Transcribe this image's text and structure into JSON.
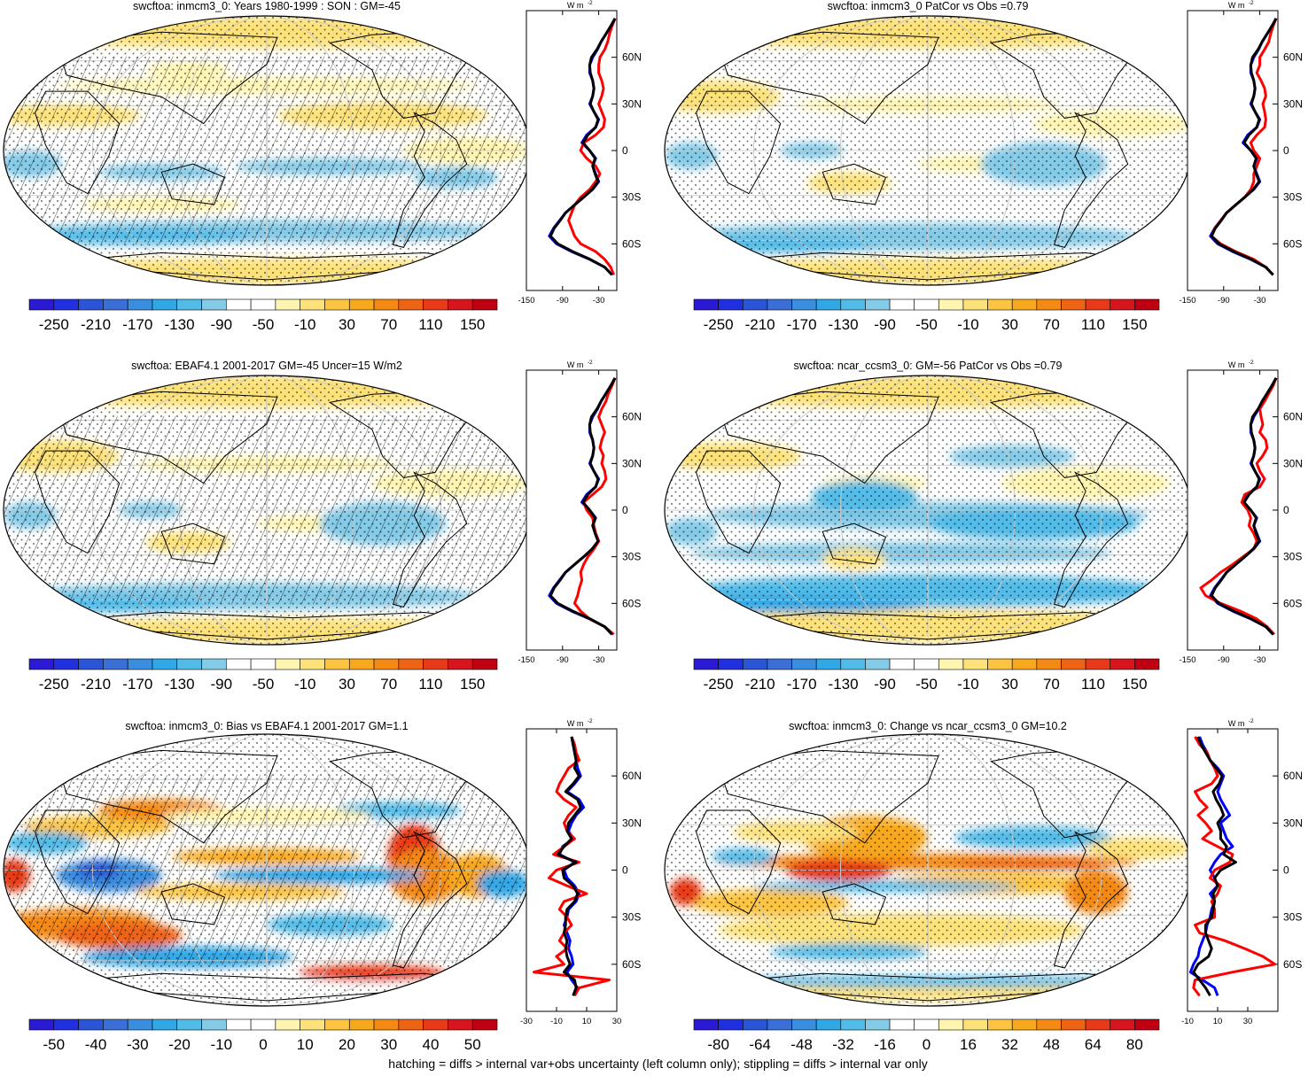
{
  "figure": {
    "footer": "hatching = diffs > internal var+obs uncertainty (left column only); stippling = diffs > internal var only",
    "zonal_unit": "W m",
    "zonal_unit_exp": "-2",
    "lat_ticks": [
      "60N",
      "30N",
      "0",
      "30S",
      "60S"
    ]
  },
  "colors": {
    "colormap": [
      "#2a1ad6",
      "#2030e0",
      "#2a55d6",
      "#3a6fd8",
      "#3a8ee0",
      "#30a8e6",
      "#52bce8",
      "#84cbe8",
      "#ffffff",
      "#ffffff",
      "#fff4b0",
      "#fde27a",
      "#fcc440",
      "#f8a81c",
      "#f48a14",
      "#ef6414",
      "#e83a18",
      "#d8141c",
      "#c00012"
    ],
    "obs_line": "#0000ff",
    "model_line": "#ff0000",
    "ref_line": "#000000"
  },
  "chart_data": [
    {
      "type": "heatmap",
      "id": "p1",
      "title": "swcftoa: inmcm3_0: Years 1980-1999 : SON : GM=-45",
      "colorbar_ticks": [
        "-250",
        "-210",
        "-170",
        "-130",
        "-90",
        "-50",
        "-10",
        "30",
        "70",
        "110",
        "150"
      ],
      "zonal": {
        "xlim": [
          -150,
          0
        ],
        "xticks": [
          "-150",
          "-90",
          "-30"
        ],
        "lat": [
          85,
          80,
          75,
          70,
          65,
          60,
          55,
          50,
          45,
          40,
          35,
          30,
          25,
          20,
          15,
          10,
          5,
          0,
          -5,
          -10,
          -15,
          -20,
          -25,
          -30,
          -35,
          -40,
          -45,
          -50,
          -55,
          -60,
          -65,
          -70,
          -75,
          -80
        ],
        "series": [
          {
            "name": "obs",
            "values": [
              -3,
              -10,
              -18,
              -26,
              -32,
              -40,
              -45,
              -45,
              -40,
              -38,
              -40,
              -45,
              -38,
              -30,
              -35,
              -50,
              -58,
              -45,
              -35,
              -40,
              -35,
              -30,
              -40,
              -55,
              -70,
              -85,
              -95,
              -105,
              -112,
              -100,
              -75,
              -45,
              -20,
              -8
            ]
          },
          {
            "name": "model",
            "values": [
              -3,
              -8,
              -12,
              -15,
              -20,
              -28,
              -30,
              -30,
              -25,
              -22,
              -25,
              -30,
              -25,
              -20,
              -22,
              -35,
              -55,
              -60,
              -50,
              -35,
              -28,
              -35,
              -45,
              -60,
              -70,
              -75,
              -80,
              -75,
              -70,
              -60,
              -35,
              -20,
              -10,
              -5
            ]
          },
          {
            "name": "ref",
            "values": [
              -3,
              -10,
              -18,
              -26,
              -33,
              -42,
              -45,
              -44,
              -40,
              -38,
              -40,
              -44,
              -38,
              -31,
              -35,
              -48,
              -56,
              -45,
              -36,
              -40,
              -36,
              -31,
              -41,
              -55,
              -70,
              -85,
              -94,
              -104,
              -110,
              -98,
              -73,
              -44,
              -20,
              -8
            ]
          }
        ]
      }
    },
    {
      "type": "heatmap",
      "id": "p2",
      "title": "swcftoa: inmcm3_0 PatCor vs Obs =0.79",
      "colorbar_ticks": [
        "-250",
        "-210",
        "-170",
        "-130",
        "-90",
        "-50",
        "-10",
        "30",
        "70",
        "110",
        "150"
      ],
      "zonal": {
        "xlim": [
          -150,
          0
        ],
        "xticks": [
          "-150",
          "-90",
          "-30"
        ],
        "lat": [
          85,
          80,
          75,
          70,
          65,
          60,
          55,
          50,
          45,
          40,
          35,
          30,
          25,
          20,
          15,
          10,
          5,
          0,
          -5,
          -10,
          -15,
          -20,
          -25,
          -30,
          -35,
          -40,
          -45,
          -50,
          -55,
          -60,
          -65,
          -70,
          -75,
          -80
        ],
        "series": [
          {
            "name": "obs",
            "values": [
              -3,
              -10,
              -18,
              -26,
              -32,
              -40,
              -45,
              -45,
              -40,
              -38,
              -40,
              -45,
              -38,
              -30,
              -35,
              -50,
              -58,
              -45,
              -35,
              -40,
              -35,
              -30,
              -40,
              -55,
              -70,
              -85,
              -95,
              -105,
              -112,
              -100,
              -75,
              -45,
              -20,
              -8
            ]
          },
          {
            "name": "model",
            "values": [
              -3,
              -8,
              -12,
              -15,
              -22,
              -30,
              -30,
              -35,
              -28,
              -22,
              -20,
              -25,
              -22,
              -20,
              -22,
              -35,
              -45,
              -40,
              -30,
              -35,
              -40,
              -40,
              -45,
              -55,
              -70,
              -85,
              -95,
              -105,
              -110,
              -95,
              -70,
              -40,
              -20,
              -8
            ]
          },
          {
            "name": "ref",
            "values": [
              -3,
              -10,
              -18,
              -26,
              -33,
              -42,
              -45,
              -44,
              -40,
              -38,
              -40,
              -44,
              -38,
              -31,
              -35,
              -48,
              -56,
              -45,
              -36,
              -40,
              -36,
              -31,
              -41,
              -55,
              -70,
              -85,
              -94,
              -104,
              -110,
              -98,
              -73,
              -44,
              -20,
              -8
            ]
          }
        ]
      }
    },
    {
      "type": "heatmap",
      "id": "p3",
      "title": "swcftoa: EBAF4.1 2001-2017 GM=-45 Uncer=15 W/m2",
      "colorbar_ticks": [
        "-250",
        "-210",
        "-170",
        "-130",
        "-90",
        "-50",
        "-10",
        "30",
        "70",
        "110",
        "150"
      ],
      "zonal": {
        "xlim": [
          -150,
          0
        ],
        "xticks": [
          "-150",
          "-90",
          "-30"
        ],
        "lat": [
          85,
          80,
          75,
          70,
          65,
          60,
          55,
          50,
          45,
          40,
          35,
          30,
          25,
          20,
          15,
          10,
          5,
          0,
          -5,
          -10,
          -15,
          -20,
          -25,
          -30,
          -35,
          -40,
          -45,
          -50,
          -55,
          -60,
          -65,
          -70,
          -75,
          -80
        ],
        "series": [
          {
            "name": "obs",
            "values": [
              -3,
              -10,
              -18,
              -26,
              -32,
              -40,
              -45,
              -45,
              -40,
              -38,
              -40,
              -45,
              -38,
              -30,
              -35,
              -50,
              -58,
              -45,
              -35,
              -40,
              -35,
              -30,
              -40,
              -55,
              -70,
              -85,
              -95,
              -105,
              -112,
              -100,
              -75,
              -45,
              -20,
              -8
            ]
          },
          {
            "name": "model",
            "values": [
              -3,
              -8,
              -14,
              -18,
              -25,
              -30,
              -25,
              -20,
              -25,
              -28,
              -22,
              -25,
              -20,
              -18,
              -25,
              -40,
              -55,
              -50,
              -40,
              -38,
              -35,
              -30,
              -38,
              -48,
              -55,
              -60,
              -58,
              -62,
              -65,
              -70,
              -60,
              -45,
              -20,
              -5
            ]
          },
          {
            "name": "ref",
            "values": [
              -3,
              -10,
              -18,
              -26,
              -33,
              -42,
              -45,
              -44,
              -40,
              -38,
              -40,
              -44,
              -38,
              -31,
              -35,
              -48,
              -56,
              -45,
              -36,
              -40,
              -36,
              -31,
              -41,
              -55,
              -70,
              -85,
              -94,
              -104,
              -110,
              -98,
              -73,
              -44,
              -20,
              -8
            ]
          }
        ]
      }
    },
    {
      "type": "heatmap",
      "id": "p4",
      "title": "swcftoa: ncar_ccsm3_0: GM=-56 PatCor vs Obs =0.79",
      "colorbar_ticks": [
        "-250",
        "-210",
        "-170",
        "-130",
        "-90",
        "-50",
        "-10",
        "30",
        "70",
        "110",
        "150"
      ],
      "zonal": {
        "xlim": [
          -150,
          0
        ],
        "xticks": [
          "-150",
          "-90",
          "-30"
        ],
        "lat": [
          85,
          80,
          75,
          70,
          65,
          60,
          55,
          50,
          45,
          40,
          35,
          30,
          25,
          20,
          15,
          10,
          5,
          0,
          -5,
          -10,
          -15,
          -20,
          -25,
          -30,
          -35,
          -40,
          -45,
          -50,
          -55,
          -60,
          -65,
          -70,
          -75,
          -80
        ],
        "series": [
          {
            "name": "obs",
            "values": [
              -3,
              -10,
              -18,
              -26,
              -32,
              -40,
              -45,
              -45,
              -40,
              -38,
              -40,
              -45,
              -38,
              -30,
              -35,
              -50,
              -58,
              -45,
              -35,
              -40,
              -35,
              -30,
              -40,
              -55,
              -70,
              -85,
              -95,
              -105,
              -112,
              -100,
              -75,
              -45,
              -20,
              -8
            ]
          },
          {
            "name": "model",
            "values": [
              -3,
              -8,
              -15,
              -22,
              -30,
              -28,
              -25,
              -30,
              -20,
              -18,
              -25,
              -35,
              -30,
              -22,
              -30,
              -55,
              -60,
              -50,
              -45,
              -48,
              -40,
              -35,
              -40,
              -58,
              -75,
              -95,
              -110,
              -128,
              -120,
              -95,
              -62,
              -35,
              -18,
              -6
            ]
          },
          {
            "name": "ref",
            "values": [
              -3,
              -10,
              -18,
              -26,
              -33,
              -42,
              -45,
              -44,
              -40,
              -38,
              -40,
              -44,
              -38,
              -31,
              -35,
              -48,
              -56,
              -45,
              -36,
              -40,
              -36,
              -31,
              -41,
              -55,
              -70,
              -85,
              -94,
              -104,
              -110,
              -98,
              -73,
              -44,
              -20,
              -8
            ]
          }
        ]
      }
    },
    {
      "type": "heatmap",
      "id": "p5",
      "title": "swcftoa: inmcm3_0: Bias vs EBAF4.1 2001-2017  GM=1.1",
      "colorbar_ticks": [
        "-50",
        "-40",
        "-30",
        "-20",
        "-10",
        "0",
        "10",
        "20",
        "30",
        "40",
        "50"
      ],
      "zonal": {
        "xlim": [
          -30,
          30
        ],
        "xticks": [
          "-30",
          "-10",
          "10",
          "30"
        ],
        "lat": [
          85,
          80,
          75,
          70,
          65,
          60,
          55,
          50,
          45,
          40,
          35,
          30,
          25,
          20,
          15,
          10,
          5,
          0,
          -5,
          -10,
          -15,
          -20,
          -25,
          -30,
          -35,
          -40,
          -45,
          -50,
          -55,
          -60,
          -65,
          -70,
          -75,
          -80
        ],
        "series": [
          {
            "name": "obs",
            "values": [
              0,
              1,
              2,
              3,
              4,
              6,
              2,
              -3,
              5,
              8,
              3,
              0,
              -2,
              1,
              -6,
              -8,
              2,
              -5,
              -3,
              2,
              5,
              3,
              -2,
              -3,
              -5,
              -3,
              -1,
              -2,
              0,
              1,
              -3,
              0,
              4,
              2
            ]
          },
          {
            "name": "model",
            "values": [
              0,
              2,
              3,
              5,
              -2,
              -5,
              -8,
              -10,
              -5,
              3,
              -2,
              -5,
              -3,
              2,
              -5,
              -12,
              5,
              -10,
              -15,
              -3,
              10,
              -5,
              -8,
              -3,
              0,
              -5,
              -8,
              -3,
              -10,
              -5,
              -25,
              25,
              5,
              2
            ]
          },
          {
            "name": "ref",
            "values": [
              0,
              1,
              2,
              3,
              2,
              5,
              1,
              -4,
              4,
              6,
              2,
              -2,
              -3,
              0,
              -5,
              -9,
              3,
              -6,
              -5,
              1,
              4,
              2,
              -3,
              -4,
              -4,
              -5,
              -3,
              -4,
              -3,
              -1,
              -5,
              2,
              3,
              1
            ]
          }
        ]
      }
    },
    {
      "type": "heatmap",
      "id": "p6",
      "title": "swcftoa: inmcm3_0: Change vs ncar_ccsm3_0 GM=10.2",
      "colorbar_ticks": [
        "-80",
        "-64",
        "-48",
        "-32",
        "-16",
        "0",
        "16",
        "32",
        "48",
        "64",
        "80"
      ],
      "zonal": {
        "xlim": [
          -10,
          50
        ],
        "xticks": [
          "-10",
          "10",
          "30"
        ],
        "lat": [
          85,
          80,
          75,
          70,
          65,
          60,
          55,
          50,
          45,
          40,
          35,
          30,
          25,
          20,
          15,
          10,
          5,
          0,
          -5,
          -10,
          -15,
          -20,
          -25,
          -30,
          -35,
          -40,
          -45,
          -50,
          -55,
          -60,
          -65,
          -70,
          -75,
          -80
        ],
        "series": [
          {
            "name": "obs",
            "values": [
              -2,
              0,
              3,
              5,
              10,
              14,
              12,
              10,
              12,
              15,
              18,
              12,
              14,
              16,
              20,
              12,
              8,
              5,
              8,
              10,
              5,
              8,
              6,
              5,
              3,
              2,
              0,
              -2,
              -3,
              -6,
              -8,
              0,
              8,
              10
            ]
          },
          {
            "name": "model",
            "values": [
              -5,
              -2,
              3,
              5,
              8,
              10,
              6,
              -5,
              -2,
              3,
              -3,
              2,
              6,
              0,
              10,
              20,
              18,
              8,
              5,
              12,
              10,
              6,
              8,
              8,
              -5,
              -2,
              15,
              28,
              40,
              48,
              20,
              -5,
              -6,
              -2
            ]
          },
          {
            "name": "ref",
            "values": [
              -3,
              -1,
              2,
              5,
              9,
              13,
              11,
              7,
              9,
              12,
              14,
              10,
              12,
              12,
              16,
              14,
              22,
              12,
              8,
              10,
              7,
              8,
              7,
              6,
              2,
              2,
              4,
              6,
              4,
              -3,
              -6,
              -2,
              2,
              5
            ]
          }
        ]
      }
    }
  ]
}
